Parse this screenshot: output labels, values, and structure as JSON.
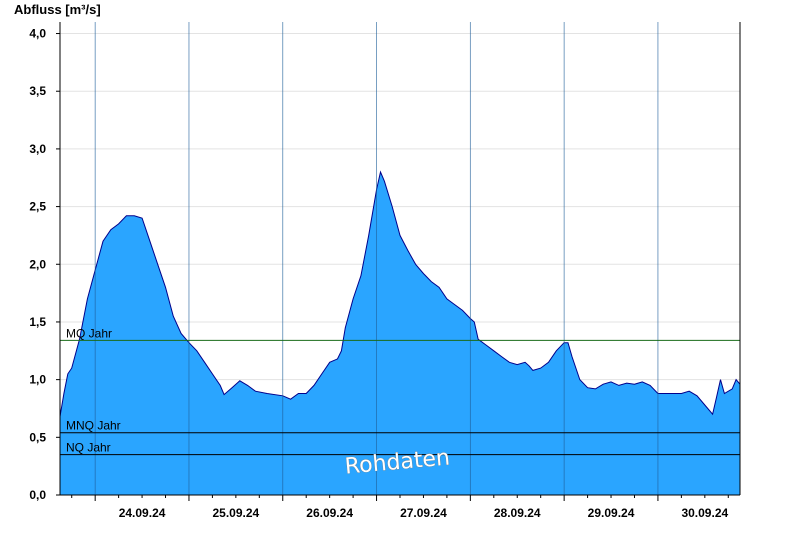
{
  "chart_data": {
    "type": "area",
    "ylabel": "Abfluss [m³/s]",
    "ylim": [
      0,
      4.1
    ],
    "yticks": [
      "0,0",
      "0,5",
      "1,0",
      "1,5",
      "2,0",
      "2,5",
      "3,0",
      "3,5",
      "4,0"
    ],
    "x_range": [
      "2024-09-23 15:00",
      "2024-09-30 21:00"
    ],
    "day_boundaries": [
      "2024-09-24 00:00",
      "2024-09-25 00:00",
      "2024-09-26 00:00",
      "2024-09-27 00:00",
      "2024-09-28 00:00",
      "2024-09-29 00:00",
      "2024-09-30 00:00"
    ],
    "day_labels": [
      "24.09.24",
      "25.09.24",
      "26.09.24",
      "27.09.24",
      "28.09.24",
      "29.09.24",
      "30.09.24"
    ],
    "grid": "horizontal",
    "series": [
      {
        "fill_color": "#2aa5ff",
        "line_color": "#00008b",
        "points": [
          [
            "2024-09-23 15:00",
            0.68
          ],
          [
            "2024-09-23 16:00",
            0.88
          ],
          [
            "2024-09-23 17:00",
            1.05
          ],
          [
            "2024-09-23 18:00",
            1.1
          ],
          [
            "2024-09-23 20:00",
            1.35
          ],
          [
            "2024-09-23 22:00",
            1.7
          ],
          [
            "2024-09-24 00:00",
            1.95
          ],
          [
            "2024-09-24 02:00",
            2.2
          ],
          [
            "2024-09-24 04:00",
            2.3
          ],
          [
            "2024-09-24 06:00",
            2.35
          ],
          [
            "2024-09-24 08:00",
            2.42
          ],
          [
            "2024-09-24 10:00",
            2.42
          ],
          [
            "2024-09-24 12:00",
            2.4
          ],
          [
            "2024-09-24 14:00",
            2.2
          ],
          [
            "2024-09-24 16:00",
            2.0
          ],
          [
            "2024-09-24 18:00",
            1.8
          ],
          [
            "2024-09-24 20:00",
            1.55
          ],
          [
            "2024-09-24 22:00",
            1.4
          ],
          [
            "2024-09-25 00:00",
            1.32
          ],
          [
            "2024-09-25 02:00",
            1.25
          ],
          [
            "2024-09-25 04:00",
            1.15
          ],
          [
            "2024-09-25 06:00",
            1.05
          ],
          [
            "2024-09-25 08:00",
            0.95
          ],
          [
            "2024-09-25 09:00",
            0.87
          ],
          [
            "2024-09-25 11:00",
            0.93
          ],
          [
            "2024-09-25 13:00",
            0.99
          ],
          [
            "2024-09-25 15:00",
            0.95
          ],
          [
            "2024-09-25 17:00",
            0.9
          ],
          [
            "2024-09-25 20:00",
            0.88
          ],
          [
            "2024-09-26 00:00",
            0.86
          ],
          [
            "2024-09-26 02:00",
            0.83
          ],
          [
            "2024-09-26 04:00",
            0.88
          ],
          [
            "2024-09-26 06:00",
            0.88
          ],
          [
            "2024-09-26 08:00",
            0.95
          ],
          [
            "2024-09-26 10:00",
            1.05
          ],
          [
            "2024-09-26 12:00",
            1.15
          ],
          [
            "2024-09-26 14:00",
            1.18
          ],
          [
            "2024-09-26 15:00",
            1.25
          ],
          [
            "2024-09-26 16:00",
            1.45
          ],
          [
            "2024-09-26 18:00",
            1.7
          ],
          [
            "2024-09-26 20:00",
            1.9
          ],
          [
            "2024-09-26 22:00",
            2.25
          ],
          [
            "2024-09-27 00:00",
            2.65
          ],
          [
            "2024-09-27 01:00",
            2.8
          ],
          [
            "2024-09-27 02:00",
            2.72
          ],
          [
            "2024-09-27 04:00",
            2.5
          ],
          [
            "2024-09-27 06:00",
            2.25
          ],
          [
            "2024-09-27 08:00",
            2.12
          ],
          [
            "2024-09-27 10:00",
            2.0
          ],
          [
            "2024-09-27 12:00",
            1.92
          ],
          [
            "2024-09-27 14:00",
            1.85
          ],
          [
            "2024-09-27 16:00",
            1.8
          ],
          [
            "2024-09-27 18:00",
            1.7
          ],
          [
            "2024-09-27 20:00",
            1.65
          ],
          [
            "2024-09-27 22:00",
            1.6
          ],
          [
            "2024-09-28 00:00",
            1.53
          ],
          [
            "2024-09-28 01:00",
            1.5
          ],
          [
            "2024-09-28 02:00",
            1.35
          ],
          [
            "2024-09-28 04:00",
            1.3
          ],
          [
            "2024-09-28 06:00",
            1.25
          ],
          [
            "2024-09-28 08:00",
            1.2
          ],
          [
            "2024-09-28 10:00",
            1.15
          ],
          [
            "2024-09-28 12:00",
            1.13
          ],
          [
            "2024-09-28 14:00",
            1.15
          ],
          [
            "2024-09-28 15:00",
            1.12
          ],
          [
            "2024-09-28 16:00",
            1.08
          ],
          [
            "2024-09-28 18:00",
            1.1
          ],
          [
            "2024-09-28 20:00",
            1.15
          ],
          [
            "2024-09-28 22:00",
            1.25
          ],
          [
            "2024-09-29 00:00",
            1.32
          ],
          [
            "2024-09-29 01:00",
            1.32
          ],
          [
            "2024-09-29 02:00",
            1.2
          ],
          [
            "2024-09-29 04:00",
            1.0
          ],
          [
            "2024-09-29 06:00",
            0.93
          ],
          [
            "2024-09-29 08:00",
            0.92
          ],
          [
            "2024-09-29 10:00",
            0.96
          ],
          [
            "2024-09-29 12:00",
            0.98
          ],
          [
            "2024-09-29 14:00",
            0.95
          ],
          [
            "2024-09-29 16:00",
            0.97
          ],
          [
            "2024-09-29 18:00",
            0.96
          ],
          [
            "2024-09-29 20:00",
            0.98
          ],
          [
            "2024-09-29 22:00",
            0.95
          ],
          [
            "2024-09-30 00:00",
            0.88
          ],
          [
            "2024-09-30 03:00",
            0.88
          ],
          [
            "2024-09-30 06:00",
            0.88
          ],
          [
            "2024-09-30 08:00",
            0.9
          ],
          [
            "2024-09-30 10:00",
            0.86
          ],
          [
            "2024-09-30 12:00",
            0.78
          ],
          [
            "2024-09-30 14:00",
            0.7
          ],
          [
            "2024-09-30 15:00",
            0.85
          ],
          [
            "2024-09-30 16:00",
            1.0
          ],
          [
            "2024-09-30 17:00",
            0.88
          ],
          [
            "2024-09-30 19:00",
            0.92
          ],
          [
            "2024-09-30 20:00",
            1.0
          ],
          [
            "2024-09-30 21:00",
            0.96
          ]
        ]
      }
    ],
    "reference_lines": [
      {
        "label": "MQ Jahr",
        "value": 1.34,
        "color": "#1a6b1a"
      },
      {
        "label": "MNQ Jahr",
        "value": 0.54,
        "color": "#000000"
      },
      {
        "label": "NQ Jahr",
        "value": 0.35,
        "color": "#000000"
      }
    ],
    "watermark": "Rohdaten"
  }
}
